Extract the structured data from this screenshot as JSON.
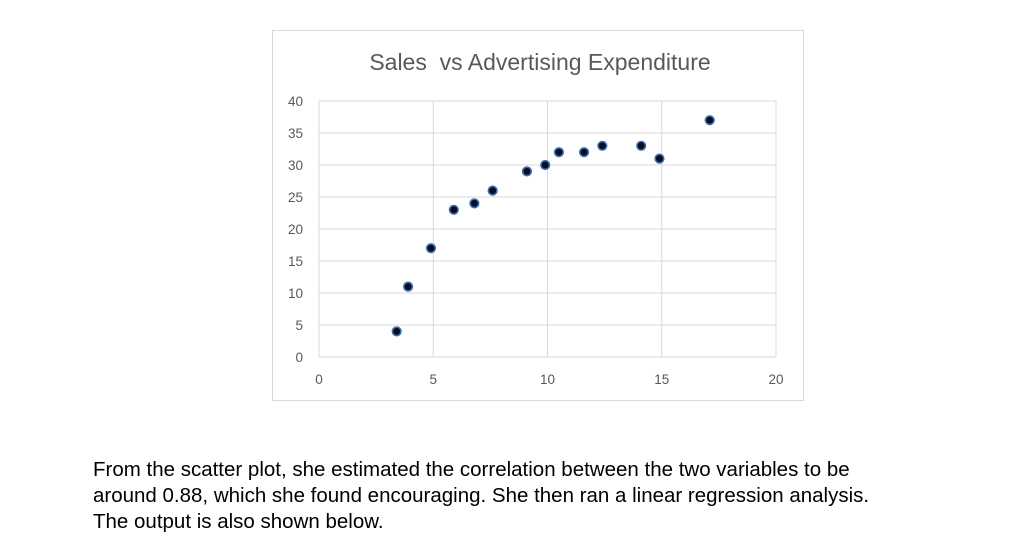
{
  "chart_data": {
    "type": "scatter",
    "title": "Sales  vs Advertising Expenditure",
    "xlabel": "",
    "ylabel": "",
    "xlim": [
      0,
      20
    ],
    "ylim": [
      0,
      40
    ],
    "x_ticks": [
      0,
      5,
      10,
      15,
      20
    ],
    "y_ticks": [
      0,
      5,
      10,
      15,
      20,
      25,
      30,
      35,
      40
    ],
    "grid": true,
    "legend": "none",
    "marker_color": "#0d0d1f",
    "marker_edge_color": "#3a6fb5",
    "points": [
      {
        "x": 3.4,
        "y": 4
      },
      {
        "x": 3.9,
        "y": 11
      },
      {
        "x": 4.9,
        "y": 17
      },
      {
        "x": 5.9,
        "y": 23
      },
      {
        "x": 6.8,
        "y": 24
      },
      {
        "x": 7.6,
        "y": 26
      },
      {
        "x": 9.1,
        "y": 29
      },
      {
        "x": 9.9,
        "y": 30
      },
      {
        "x": 10.5,
        "y": 32
      },
      {
        "x": 11.6,
        "y": 32
      },
      {
        "x": 12.4,
        "y": 33
      },
      {
        "x": 14.1,
        "y": 33
      },
      {
        "x": 14.9,
        "y": 31
      },
      {
        "x": 17.1,
        "y": 37
      }
    ]
  },
  "caption": {
    "lines": [
      "From the scatter plot, she estimated the correlation between the two variables to be",
      "around 0.88, which she found encouraging. She then ran a linear regression analysis.",
      "The output is also shown below."
    ]
  }
}
